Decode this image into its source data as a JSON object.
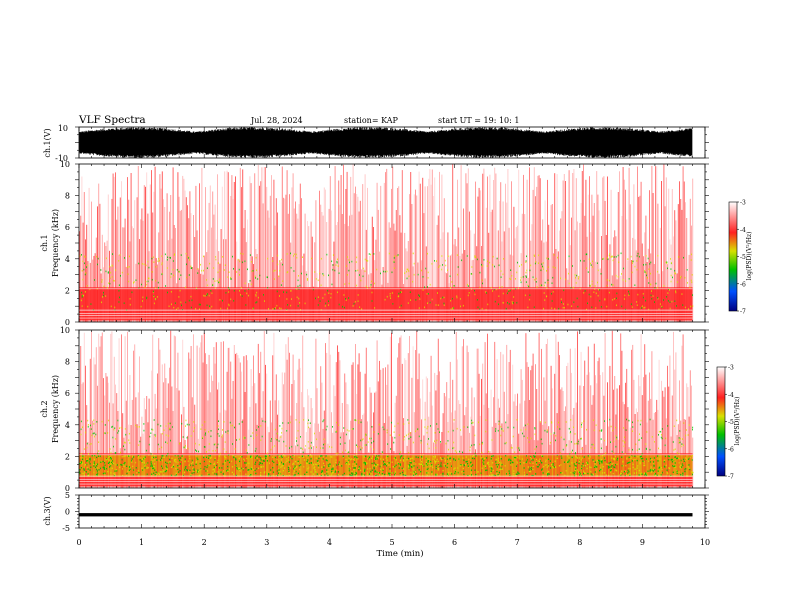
{
  "header": {
    "title": "VLF Spectra",
    "date": "Jul. 28, 2024",
    "station": "station= KAP",
    "start": "start UT = 19: 10: 1"
  },
  "colors": {
    "low": "#000080",
    "mid_low": "#0050ff",
    "mid": "#00c000",
    "mid_high": "#d8e000",
    "high": "#ff2020",
    "background": "#ffffff",
    "waveform": "#000000"
  },
  "chart_data": [
    {
      "type": "line",
      "panel": "ch1-waveform",
      "ylabel": "ch.1(V)",
      "ylim": [
        -10,
        10
      ],
      "yticks": [
        10,
        -10
      ],
      "xlim": [
        0,
        10
      ],
      "note_series": "dense waveform, amplitude nearly saturating +/-10 V from 0 to ~9.8 min"
    },
    {
      "type": "heatmap",
      "panel": "ch1-spectrogram",
      "ylabel": "ch.1\nFrequency (kHz)",
      "ylim": [
        0,
        10
      ],
      "yticks": [
        0,
        2,
        4,
        6,
        8,
        10
      ],
      "xlim": [
        0,
        10
      ],
      "data_xmax": 9.8,
      "colorbar": {
        "label": "log(PSD)(V²/Hz)",
        "range": [
          -7,
          -3
        ],
        "ticks": [
          -3,
          -4,
          -5,
          -6,
          -7
        ]
      }
    },
    {
      "type": "heatmap",
      "panel": "ch2-spectrogram",
      "ylabel": "ch.2\nFrequency (kHz)",
      "ylim": [
        0,
        10
      ],
      "yticks": [
        0,
        2,
        4,
        6,
        8,
        10
      ],
      "xlim": [
        0,
        10
      ],
      "data_xmax": 9.8,
      "colorbar": {
        "label": "log(PSD)(V²/Hz)",
        "range": [
          -7,
          -3
        ],
        "ticks": [
          -3,
          -4,
          -5,
          -6,
          -7
        ]
      }
    },
    {
      "type": "line",
      "panel": "ch3-waveform",
      "ylabel": "ch.3(V)",
      "ylim": [
        -5,
        5
      ],
      "yticks": [
        5,
        0,
        -5
      ],
      "xlim": [
        0,
        10
      ],
      "xlabel": "Time (min)",
      "xticks": [
        0,
        1,
        2,
        3,
        4,
        5,
        6,
        7,
        8,
        9,
        10
      ],
      "level": -1,
      "band": [
        -1.5,
        -0.5
      ]
    }
  ]
}
